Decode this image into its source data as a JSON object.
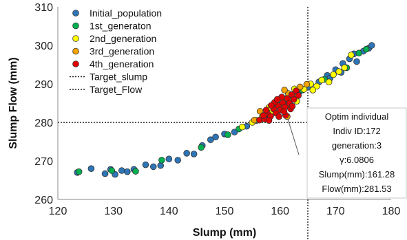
{
  "chart_data": {
    "type": "scatter",
    "title": "",
    "xlabel": "Slump (mm)",
    "ylabel": "Slump Flow (mm)",
    "xlim": [
      120,
      180
    ],
    "ylim": [
      260,
      310
    ],
    "xticks": [
      "120",
      "130",
      "140",
      "150",
      "160",
      "170",
      "180"
    ],
    "yticks": [
      "260",
      "270",
      "280",
      "290",
      "300",
      "310"
    ],
    "grid": false,
    "legend_position": "top-left",
    "series": [
      {
        "name": "Initial_population",
        "color": "#2e75b6",
        "points": [
          [
            123.5,
            267.0
          ],
          [
            126.0,
            268.0
          ],
          [
            128.5,
            266.7
          ],
          [
            129.5,
            267.8
          ],
          [
            130.3,
            266.5
          ],
          [
            131.5,
            267.5
          ],
          [
            132.5,
            267.2
          ],
          [
            133.7,
            267.8
          ],
          [
            135.8,
            269.0
          ],
          [
            137.2,
            268.5
          ],
          [
            138.5,
            268.8
          ],
          [
            140.0,
            270.5
          ],
          [
            141.6,
            270.2
          ],
          [
            143.2,
            272.0
          ],
          [
            144.5,
            271.8
          ],
          [
            146.0,
            274.0
          ],
          [
            147.5,
            275.5
          ],
          [
            148.4,
            276.2
          ],
          [
            150.0,
            277.0
          ],
          [
            151.8,
            277.5
          ],
          [
            154.0,
            279.0
          ],
          [
            155.8,
            280.5
          ],
          [
            158.4,
            283.0
          ],
          [
            160.0,
            284.5
          ],
          [
            161.6,
            286.0
          ],
          [
            163.5,
            288.0
          ],
          [
            165.2,
            289.3
          ],
          [
            167.0,
            290.5
          ],
          [
            168.5,
            292.2
          ],
          [
            170.0,
            293.7
          ],
          [
            171.3,
            295.3
          ],
          [
            172.5,
            296.5
          ],
          [
            173.3,
            297.8
          ],
          [
            173.8,
            295.8
          ],
          [
            175.0,
            298.5
          ],
          [
            176.0,
            299.3
          ],
          [
            176.5,
            300.0
          ],
          [
            169.0,
            291.5
          ],
          [
            171.0,
            293.0
          ],
          [
            157.0,
            281.5
          ]
        ]
      },
      {
        "name": "1st_generaton",
        "color": "#00b050",
        "points": [
          [
            123.8,
            267.2
          ],
          [
            129.7,
            267.5
          ],
          [
            134.0,
            267.3
          ],
          [
            138.7,
            270.2
          ],
          [
            145.8,
            273.5
          ],
          [
            150.6,
            276.8
          ],
          [
            152.6,
            278.3
          ],
          [
            157.2,
            281.2
          ],
          [
            160.6,
            285.0
          ],
          [
            164.0,
            288.4
          ],
          [
            168.0,
            291.2
          ],
          [
            172.0,
            294.2
          ],
          [
            174.2,
            298.0
          ],
          [
            175.5,
            299.0
          ]
        ]
      },
      {
        "name": "2nd_generation",
        "color": "#ffff00",
        "points": [
          [
            153.2,
            278.8
          ],
          [
            155.0,
            280.0
          ],
          [
            156.8,
            281.5
          ],
          [
            158.6,
            282.8
          ],
          [
            160.2,
            283.6
          ],
          [
            161.0,
            286.2
          ],
          [
            162.3,
            287.0
          ],
          [
            163.0,
            285.5
          ],
          [
            164.3,
            288.6
          ],
          [
            165.5,
            290.0
          ],
          [
            166.6,
            289.4
          ],
          [
            167.5,
            291.0
          ],
          [
            168.8,
            290.5
          ],
          [
            169.6,
            292.4
          ],
          [
            170.6,
            293.2
          ],
          [
            171.6,
            294.2
          ],
          [
            172.8,
            297.5
          ],
          [
            162.6,
            288.7
          ],
          [
            158.0,
            283.9
          ],
          [
            165.9,
            288.4
          ]
        ]
      },
      {
        "name": "3rd_generation",
        "color": "#f5a300",
        "points": [
          [
            161.28,
            281.53
          ],
          [
            155.4,
            280.6
          ],
          [
            157.6,
            282.4
          ],
          [
            159.5,
            284.6
          ],
          [
            161.5,
            287.5
          ],
          [
            163.6,
            289.2
          ],
          [
            164.8,
            289.9
          ],
          [
            162.1,
            286.3
          ],
          [
            156.4,
            282.9
          ],
          [
            160.8,
            288.4
          ]
        ]
      },
      {
        "name": "4th_generation",
        "color": "#e00000",
        "points": [
          [
            156.3,
            280.6
          ],
          [
            157.2,
            280.9
          ],
          [
            157.8,
            282.2
          ],
          [
            158.3,
            281.6
          ],
          [
            158.9,
            283.4
          ],
          [
            159.3,
            282.4
          ],
          [
            159.7,
            284.3
          ],
          [
            160.1,
            283.2
          ],
          [
            160.5,
            285.1
          ],
          [
            160.9,
            284.0
          ],
          [
            161.3,
            286.2
          ],
          [
            161.7,
            285.0
          ],
          [
            162.1,
            287.2
          ],
          [
            162.5,
            286.0
          ],
          [
            162.9,
            288.2
          ],
          [
            159.0,
            285.2
          ],
          [
            160.3,
            286.6
          ],
          [
            158.4,
            284.4
          ],
          [
            161.0,
            281.9
          ],
          [
            157.5,
            283.2
          ],
          [
            159.8,
            281.5
          ],
          [
            161.9,
            283.5
          ],
          [
            158.0,
            280.5
          ],
          [
            160.7,
            282.8
          ],
          [
            163.3,
            287.0
          ],
          [
            157.0,
            281.8
          ],
          [
            159.5,
            286.0
          ],
          [
            162.2,
            284.2
          ]
        ]
      }
    ],
    "reference_lines": [
      {
        "name": "Target_slump",
        "orientation": "vertical",
        "value": 165
      },
      {
        "name": "Target_Flow",
        "orientation": "horizontal",
        "value": 280
      }
    ],
    "annotation": {
      "target_point": [
        161.28,
        281.53
      ],
      "lines": [
        "Optim individual",
        "Indiv ID:172",
        "generation:3",
        "γ:6.0806",
        "Slump(mm):161.28",
        "Flow(mm):281.53"
      ]
    }
  }
}
